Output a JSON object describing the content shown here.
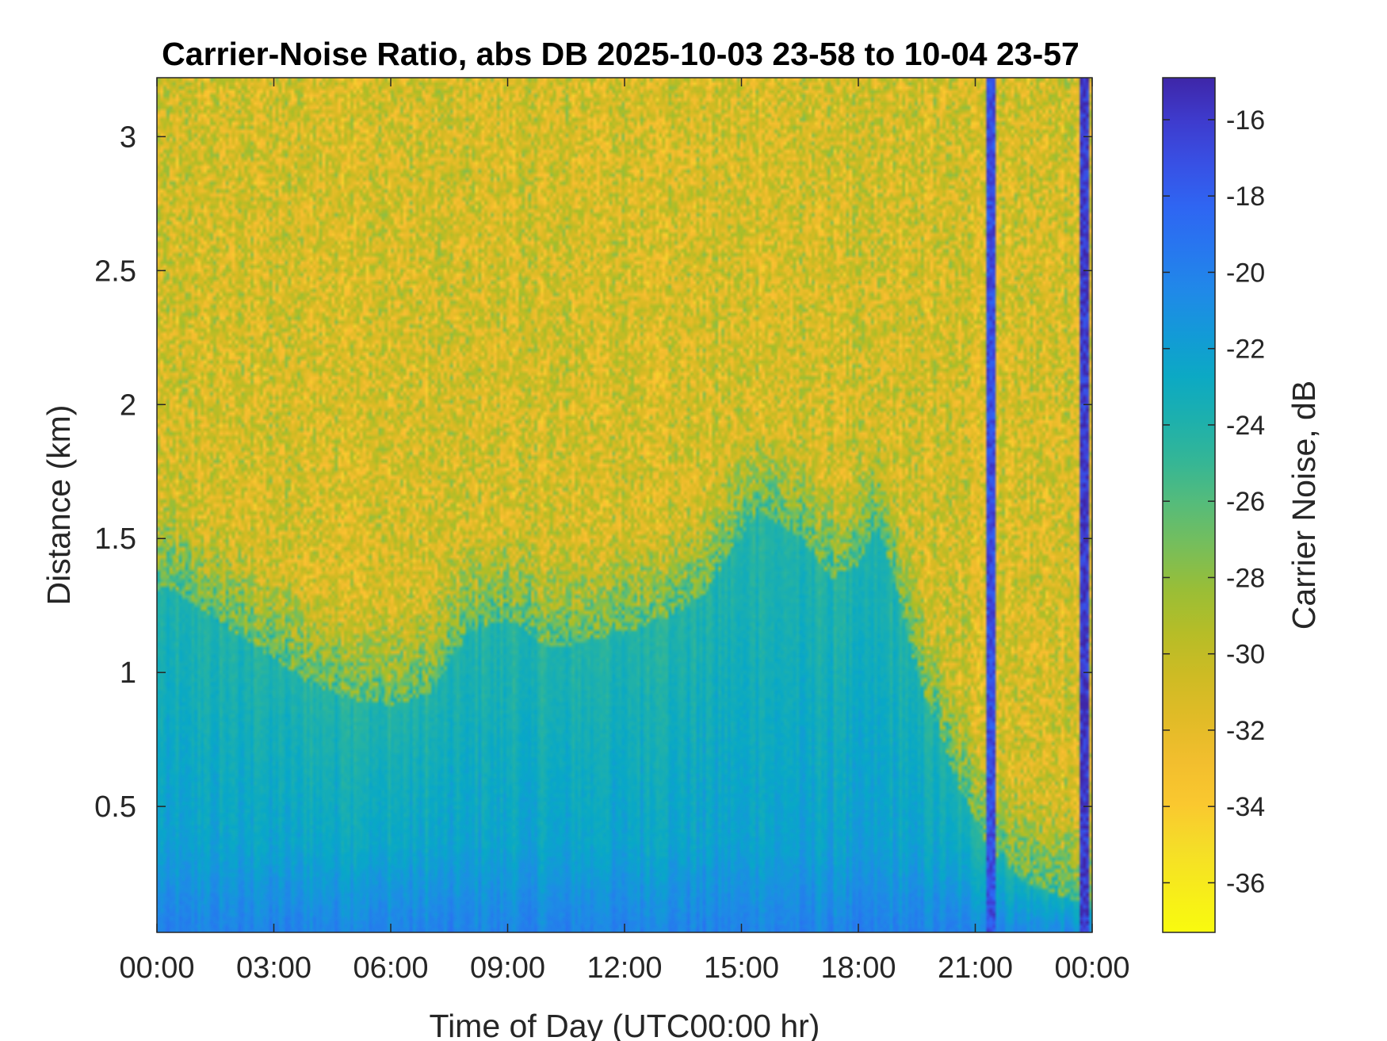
{
  "chart_data": {
    "type": "heatmap",
    "title": "Carrier-Noise Ratio, abs DB 2025-10-03 23-58 to 10-04 23-57",
    "xlabel": "Time of Day (UTC00:00 hr)",
    "ylabel": "Distance (km)",
    "colorbar_label": "Carrier Noise, dB",
    "colormap": "parula (reversed: yellow = low, dark blue = high)",
    "x_ticks": [
      {
        "value": 0,
        "label": "00:00"
      },
      {
        "value": 3,
        "label": "03:00"
      },
      {
        "value": 6,
        "label": "06:00"
      },
      {
        "value": 9,
        "label": "09:00"
      },
      {
        "value": 12,
        "label": "12:00"
      },
      {
        "value": 15,
        "label": "15:00"
      },
      {
        "value": 18,
        "label": "18:00"
      },
      {
        "value": 21,
        "label": "21:00"
      },
      {
        "value": 24,
        "label": "00:00"
      }
    ],
    "y_ticks": [
      {
        "value": 0.5,
        "label": "0.5"
      },
      {
        "value": 1,
        "label": "1"
      },
      {
        "value": 1.5,
        "label": "1.5"
      },
      {
        "value": 2,
        "label": "2"
      },
      {
        "value": 2.5,
        "label": "2.5"
      },
      {
        "value": 3,
        "label": "3"
      }
    ],
    "colorbar_ticks": [
      {
        "value": -16,
        "label": "-16"
      },
      {
        "value": -18,
        "label": "-18"
      },
      {
        "value": -20,
        "label": "-20"
      },
      {
        "value": -22,
        "label": "-22"
      },
      {
        "value": -24,
        "label": "-24"
      },
      {
        "value": -26,
        "label": "-26"
      },
      {
        "value": -28,
        "label": "-28"
      },
      {
        "value": -30,
        "label": "-30"
      },
      {
        "value": -32,
        "label": "-32"
      },
      {
        "value": -34,
        "label": "-34"
      },
      {
        "value": -36,
        "label": "-36"
      }
    ],
    "xlim": [
      0,
      24
    ],
    "ylim": [
      0.03,
      3.22
    ],
    "clim": [
      -37.3,
      -14.9
    ],
    "boundary_layer_top_km": {
      "hours": [
        0,
        0.5,
        1,
        2,
        3,
        4,
        5,
        6,
        7,
        8,
        9,
        9.5,
        10,
        10.5,
        11,
        12,
        13,
        14,
        14.7,
        15.5,
        16.5,
        17.3,
        18,
        18.5,
        19,
        19.5,
        20,
        20.5,
        21,
        21.3,
        21.7,
        22,
        22.5,
        23,
        23.5,
        24
      ],
      "values": [
        1.3,
        1.3,
        1.25,
        1.15,
        1.05,
        0.95,
        0.9,
        0.88,
        0.92,
        1.15,
        1.2,
        1.15,
        1.1,
        1.1,
        1.12,
        1.15,
        1.2,
        1.28,
        1.45,
        1.6,
        1.5,
        1.35,
        1.4,
        1.55,
        1.3,
        1.0,
        0.8,
        0.6,
        0.45,
        0.35,
        0.3,
        0.25,
        0.2,
        0.18,
        0.15,
        0.12
      ]
    },
    "boundary_layer_value_db": -22,
    "free_troposphere_value_db": -31,
    "high_signal_columns": [
      {
        "hour": 21.4,
        "value_db": -17
      },
      {
        "hour": 23.8,
        "value_db": -16
      }
    ]
  }
}
